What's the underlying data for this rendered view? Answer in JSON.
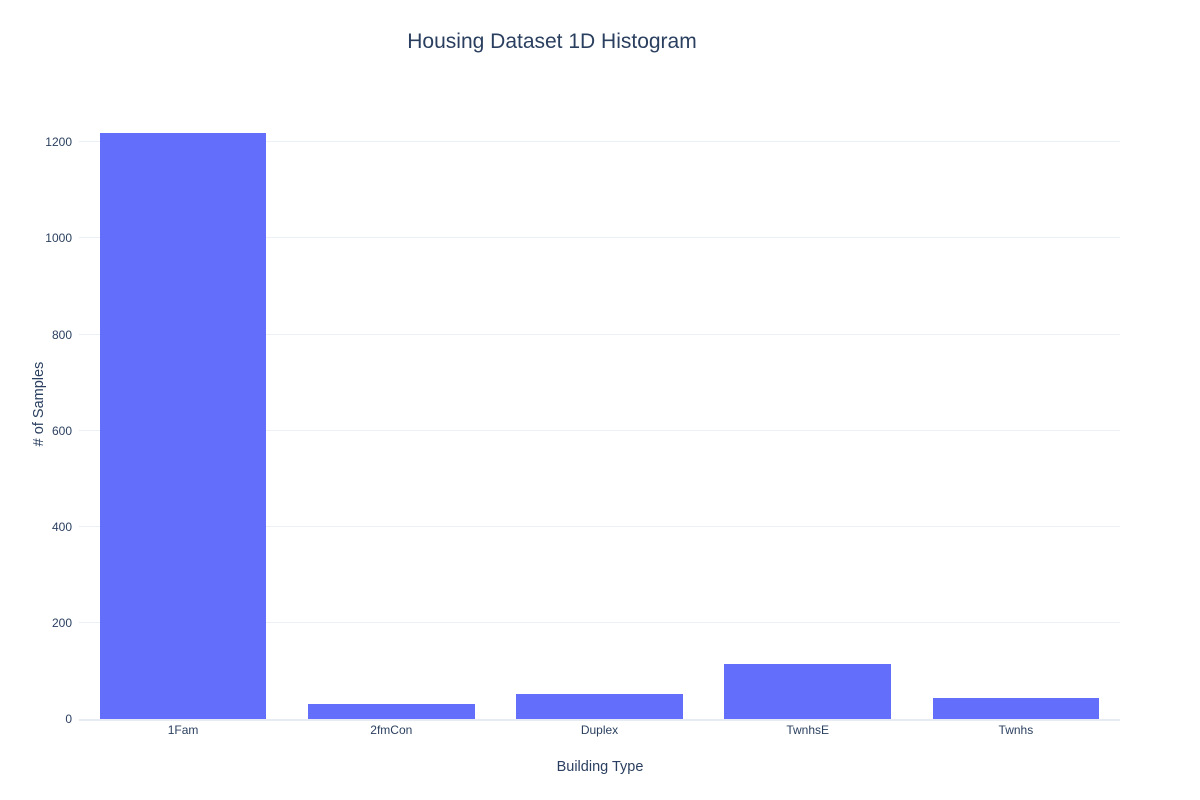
{
  "title": "Housing Dataset 1D Histogram",
  "chart_data": {
    "type": "bar",
    "title": "Housing Dataset 1D Histogram",
    "categories": [
      "1Fam",
      "2fmCon",
      "Duplex",
      "TwnhsE",
      "Twnhs"
    ],
    "values": [
      1220,
      31,
      52,
      114,
      43
    ],
    "xlabel": "Building Type",
    "ylabel": "# of Samples",
    "ylim": [
      0,
      1284
    ],
    "yticks": [
      0,
      200,
      400,
      600,
      800,
      1000,
      1200
    ],
    "grid": true,
    "legend": false,
    "bar_gap_fraction": 0.2
  },
  "colors": {
    "bar": "#636efa",
    "title_text": "#2a3f5f",
    "tick_text": "#2a3f5f",
    "gridline": "#ebf0f8",
    "zeroline": "#e6ebf4",
    "background": "#ffffff"
  }
}
